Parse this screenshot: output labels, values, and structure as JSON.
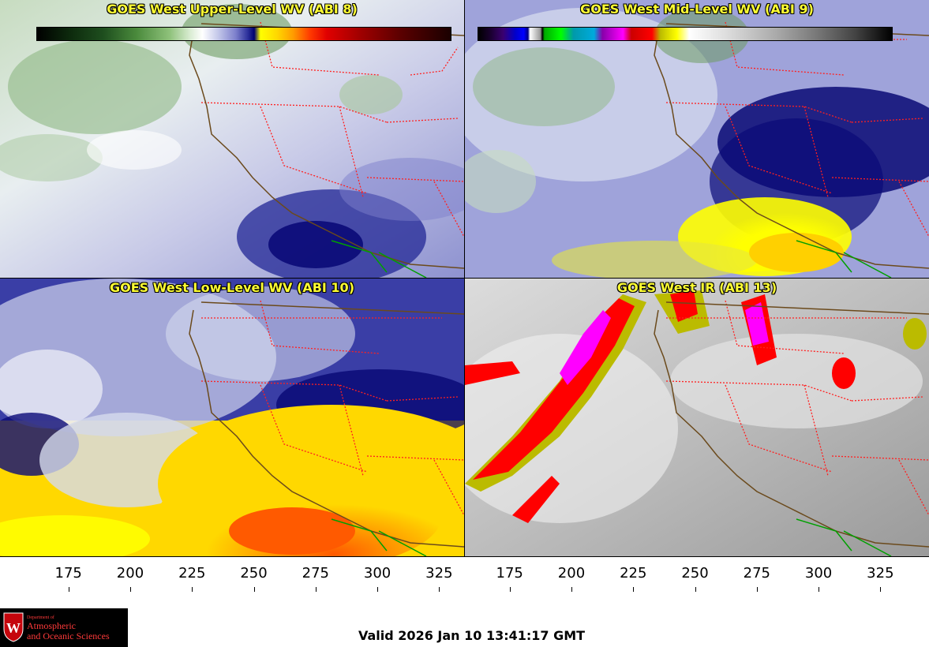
{
  "panels": [
    {
      "title": "GOES West Upper-Level WV (ABI 8)",
      "channel": "upper"
    },
    {
      "title": "GOES West Mid-Level WV (ABI 9)",
      "channel": "mid"
    },
    {
      "title": "GOES West Low-Level WV (ABI 10)",
      "channel": "low"
    },
    {
      "title": "GOES West IR (ABI 13)",
      "channel": "ir"
    }
  ],
  "scales": {
    "left": {
      "ticks": [
        "175",
        "200",
        "225",
        "250",
        "275",
        "300",
        "325"
      ],
      "values": [
        175,
        200,
        225,
        250,
        275,
        300,
        325
      ],
      "range": [
        162,
        330
      ]
    },
    "right": {
      "ticks": [
        "175",
        "200",
        "225",
        "250",
        "275",
        "300",
        "325"
      ],
      "values": [
        175,
        200,
        225,
        250,
        275,
        300,
        325
      ],
      "range": [
        162,
        330
      ]
    }
  },
  "logo": {
    "dept": "Department of",
    "line1": "Atmospheric",
    "line2": "and Oceanic Sciences",
    "seal_letter": "W"
  },
  "valid_text": "Valid 2026 Jan 10 13:41:17 GMT",
  "colors": {
    "title_text": "#ffff33",
    "state_lines": "#ff2020",
    "coast": "#6b4a1c",
    "border_mexico": "#00a000",
    "logo_text": "#ff3a3a"
  }
}
